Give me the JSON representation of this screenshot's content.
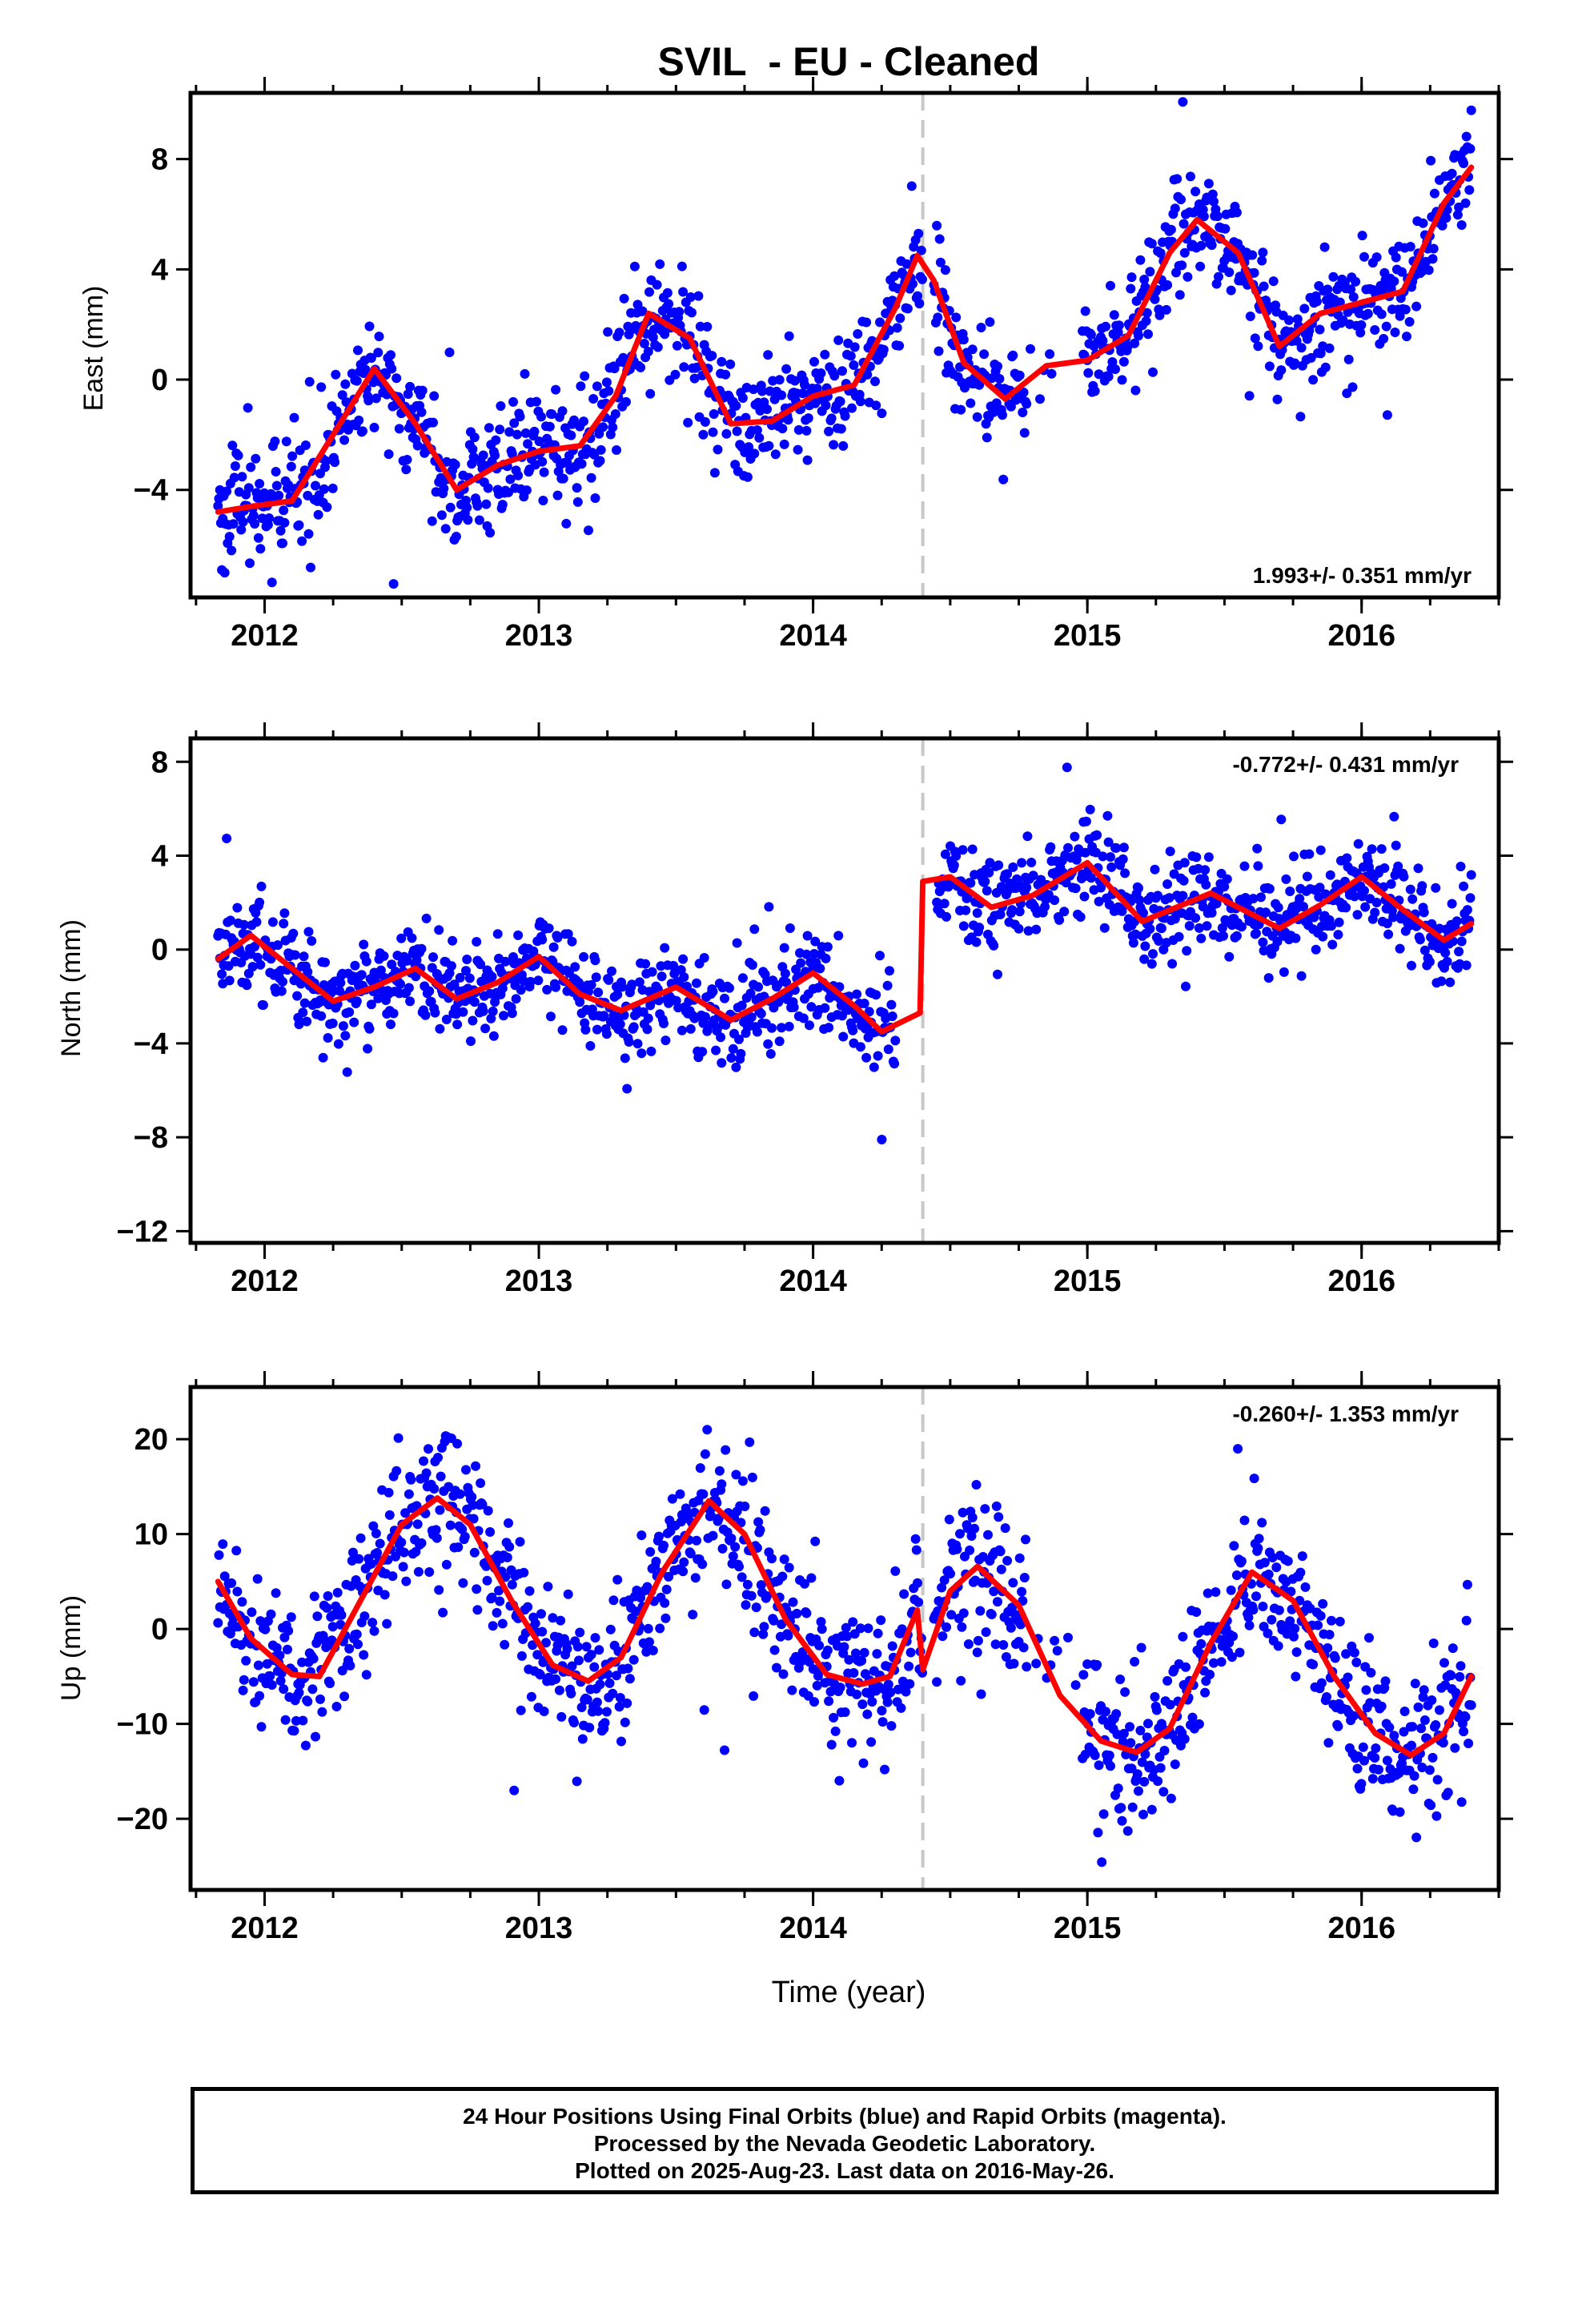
{
  "title": "SVIL  - EU - Cleaned",
  "xlabel": "Time (year)",
  "footer": {
    "line1": "24 Hour Positions Using Final Orbits (blue) and Rapid Orbits (magenta).",
    "line2": "Processed by the Nevada Geodetic Laboratory.",
    "line3": "Plotted on 2025-Aug-23. Last data on 2016-May-26."
  },
  "colors": {
    "points": "#0000ff",
    "model": "#ff0000",
    "offset_line": "#c8c8c8",
    "axes": "#000000"
  },
  "chart_data": [
    {
      "type": "scatter",
      "component": "East",
      "ylabel": "East (mm)",
      "rate_label": "1.993+/- 0.351 mm/yr",
      "xlim": [
        2011.73,
        2016.5
      ],
      "ylim": [
        -7.9,
        10.4
      ],
      "x_ticks": [
        2012,
        2013,
        2014,
        2015,
        2016
      ],
      "y_ticks": [
        8,
        4,
        0,
        -4
      ],
      "equipment_change": 2014.4,
      "data_span": [
        2011.83,
        2016.4
      ],
      "model": {
        "x": [
          2011.83,
          2011.95,
          2012.1,
          2012.25,
          2012.4,
          2012.55,
          2012.7,
          2012.85,
          2013.0,
          2013.15,
          2013.28,
          2013.4,
          2013.55,
          2013.7,
          2013.85,
          2014.0,
          2014.15,
          2014.3,
          2014.38,
          2014.4,
          2014.44,
          2014.55,
          2014.7,
          2014.85,
          2015.0,
          2015.15,
          2015.3,
          2015.4,
          2015.55,
          2015.7,
          2015.85,
          2016.0,
          2016.15,
          2016.3,
          2016.4
        ],
        "y": [
          -4.8,
          -4.6,
          -4.4,
          -2.0,
          0.4,
          -1.6,
          -4.0,
          -3.1,
          -2.6,
          -2.4,
          -0.6,
          2.4,
          1.5,
          -1.6,
          -1.5,
          -0.6,
          -0.2,
          2.6,
          4.5,
          4.2,
          3.6,
          0.6,
          -0.7,
          0.5,
          0.7,
          1.6,
          4.6,
          5.8,
          4.6,
          1.2,
          2.4,
          2.8,
          3.2,
          6.4,
          7.7
        ]
      }
    },
    {
      "type": "scatter",
      "component": "North",
      "ylabel": "North (mm)",
      "rate_label": "-0.772+/- 0.431 mm/yr",
      "xlim": [
        2011.73,
        2016.5
      ],
      "ylim": [
        -12.5,
        9.0
      ],
      "x_ticks": [
        2012,
        2013,
        2014,
        2015,
        2016
      ],
      "y_ticks": [
        8,
        4,
        0,
        -4,
        -8,
        -12
      ],
      "equipment_change": 2014.4,
      "data_span": [
        2011.83,
        2016.4
      ],
      "model": {
        "x": [
          2011.83,
          2011.95,
          2012.1,
          2012.25,
          2012.4,
          2012.55,
          2012.7,
          2012.85,
          2013.0,
          2013.15,
          2013.3,
          2013.5,
          2013.7,
          2013.85,
          2014.0,
          2014.15,
          2014.25,
          2014.39,
          2014.4,
          2014.5,
          2014.65,
          2014.8,
          2015.0,
          2015.2,
          2015.45,
          2015.7,
          2015.85,
          2016.0,
          2016.15,
          2016.3,
          2016.4
        ],
        "y": [
          -0.4,
          0.6,
          -0.8,
          -2.2,
          -1.6,
          -0.8,
          -2.1,
          -1.4,
          -0.3,
          -1.9,
          -2.6,
          -1.6,
          -3.0,
          -2.1,
          -1.0,
          -2.4,
          -3.5,
          -2.7,
          2.9,
          3.1,
          1.8,
          2.3,
          3.7,
          1.2,
          2.4,
          0.9,
          1.9,
          3.1,
          1.7,
          0.4,
          1.1
        ]
      }
    },
    {
      "type": "scatter",
      "component": "Up",
      "ylabel": "Up (mm)",
      "rate_label": "-0.260+/- 1.353 mm/yr",
      "xlim": [
        2011.73,
        2016.5
      ],
      "ylim": [
        -27.5,
        25.5
      ],
      "x_ticks": [
        2012,
        2013,
        2014,
        2015,
        2016
      ],
      "y_ticks": [
        20,
        10,
        0,
        -10,
        -20
      ],
      "equipment_change": 2014.4,
      "data_span": [
        2011.83,
        2016.4
      ],
      "model": {
        "x": [
          2011.83,
          2011.95,
          2012.1,
          2012.2,
          2012.35,
          2012.5,
          2012.63,
          2012.75,
          2012.9,
          2013.05,
          2013.18,
          2013.3,
          2013.45,
          2013.62,
          2013.75,
          2013.9,
          2014.05,
          2014.18,
          2014.28,
          2014.38,
          2014.4,
          2014.5,
          2014.6,
          2014.75,
          2014.9,
          2015.05,
          2015.18,
          2015.3,
          2015.45,
          2015.6,
          2015.75,
          2015.9,
          2016.05,
          2016.18,
          2016.3,
          2016.4
        ],
        "y": [
          5.0,
          -1.0,
          -4.8,
          -5.0,
          3.0,
          11.0,
          13.8,
          11.0,
          3.0,
          -3.8,
          -5.5,
          -3.0,
          6.0,
          13.5,
          10.0,
          1.0,
          -4.8,
          -5.8,
          -5.0,
          2.0,
          -4.3,
          4.0,
          6.6,
          2.5,
          -7.0,
          -11.8,
          -13.0,
          -10.5,
          -1.5,
          6.0,
          3.0,
          -5.0,
          -11.0,
          -13.3,
          -11.0,
          -5.0
        ]
      }
    }
  ]
}
